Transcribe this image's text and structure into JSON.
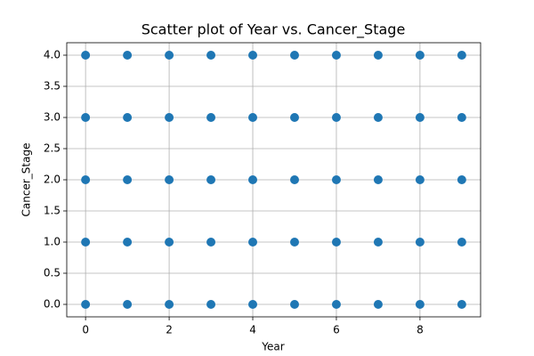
{
  "chart_data": {
    "type": "scatter",
    "title": "Scatter plot of Year vs. Cancer_Stage",
    "x_label": "Year",
    "y_label": "Cancer_Stage",
    "x": [
      0,
      1,
      2,
      3,
      4,
      5,
      6,
      7,
      8,
      9,
      0,
      1,
      2,
      3,
      4,
      5,
      6,
      7,
      8,
      9,
      0,
      1,
      2,
      3,
      4,
      5,
      6,
      7,
      8,
      9,
      0,
      1,
      2,
      3,
      4,
      5,
      6,
      7,
      8,
      9,
      0,
      1,
      2,
      3,
      4,
      5,
      6,
      7,
      8,
      9
    ],
    "y": [
      0,
      0,
      0,
      0,
      0,
      0,
      0,
      0,
      0,
      0,
      1,
      1,
      1,
      1,
      1,
      1,
      1,
      1,
      1,
      1,
      2,
      2,
      2,
      2,
      2,
      2,
      2,
      2,
      2,
      2,
      3,
      3,
      3,
      3,
      3,
      3,
      3,
      3,
      3,
      3,
      4,
      4,
      4,
      4,
      4,
      4,
      4,
      4,
      4,
      4
    ],
    "color": "#1f77b4",
    "xlim": [
      -0.45,
      9.45
    ],
    "ylim": [
      -0.2,
      4.2
    ],
    "xticks": [
      0,
      2,
      4,
      6,
      8
    ],
    "yticks": [
      {
        "value": 0,
        "label": "0.0"
      },
      0.5,
      {
        "value": 1,
        "label": "1.0"
      },
      1.5,
      {
        "value": 2,
        "label": "2.0"
      },
      2.5,
      {
        "value": 3,
        "label": "3.0"
      },
      3.5,
      {
        "value": 4,
        "label": "4.0"
      }
    ],
    "grid": true
  }
}
